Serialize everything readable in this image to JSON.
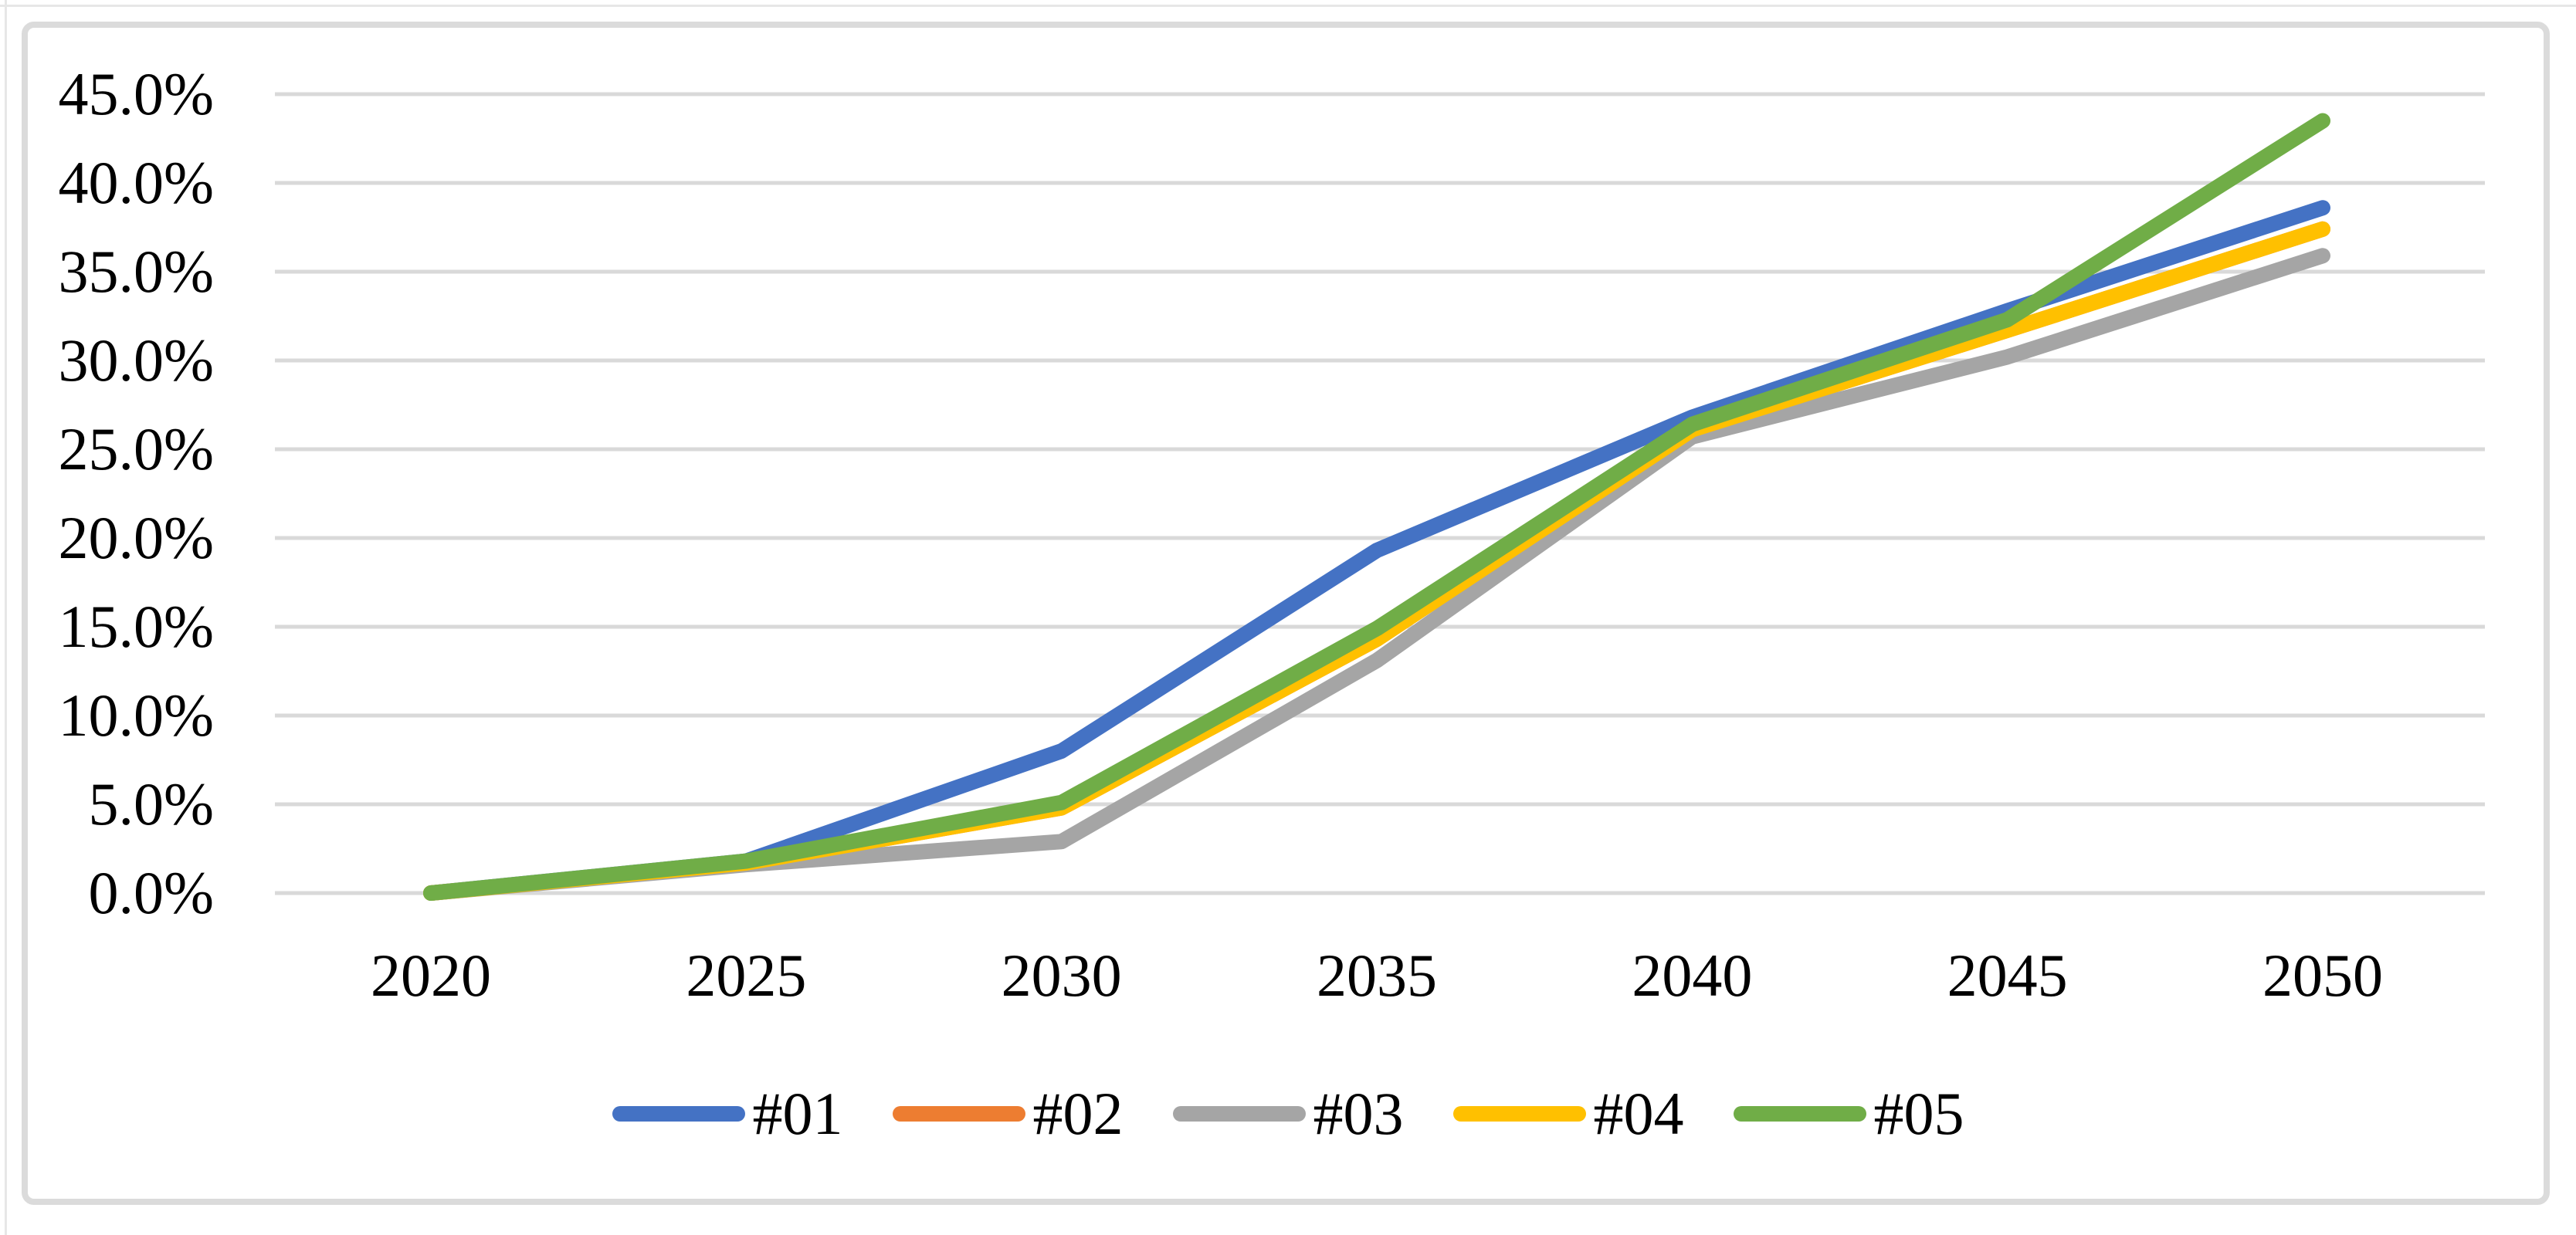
{
  "chart_data": {
    "type": "line",
    "x": [
      2020,
      2025,
      2030,
      2035,
      2040,
      2045,
      2050
    ],
    "x_tick_labels": [
      "2020",
      "2025",
      "2030",
      "2035",
      "2040",
      "2045",
      "2050"
    ],
    "y_tick_labels": [
      "45.0%",
      "40.0%",
      "35.0%",
      "30.0%",
      "25.0%",
      "20.0%",
      "15.0%",
      "10.0%",
      "5.0%",
      "0.0%"
    ],
    "y_tick_values": [
      45,
      40,
      35,
      30,
      25,
      20,
      15,
      10,
      5,
      0
    ],
    "ylim": [
      0,
      45
    ],
    "xlabel": "",
    "ylabel": "",
    "title": "",
    "grid": true,
    "legend_position": "bottom-center",
    "series": [
      {
        "name": "#01",
        "color": "#4472C4",
        "values": [
          0.0,
          1.8,
          8.0,
          19.3,
          26.8,
          32.8,
          38.6
        ]
      },
      {
        "name": "#02",
        "color": "#ED7D31",
        "values": [
          0.0,
          1.7,
          4.8,
          14.3,
          26.1,
          31.7,
          37.4
        ]
      },
      {
        "name": "#03",
        "color": "#A5A5A5",
        "values": [
          0.0,
          1.6,
          2.9,
          13.1,
          25.7,
          30.2,
          35.9
        ]
      },
      {
        "name": "#04",
        "color": "#FFC000",
        "values": [
          0.0,
          1.7,
          4.8,
          14.3,
          26.1,
          31.7,
          37.4
        ]
      },
      {
        "name": "#05",
        "color": "#70AD47",
        "values": [
          0.0,
          1.8,
          5.1,
          14.9,
          26.4,
          32.3,
          43.5
        ]
      }
    ],
    "colors": {
      "gridline": "#D9D9D9",
      "frame": "#DBDBDB",
      "text": "#000000",
      "background": "#FFFFFF"
    }
  }
}
